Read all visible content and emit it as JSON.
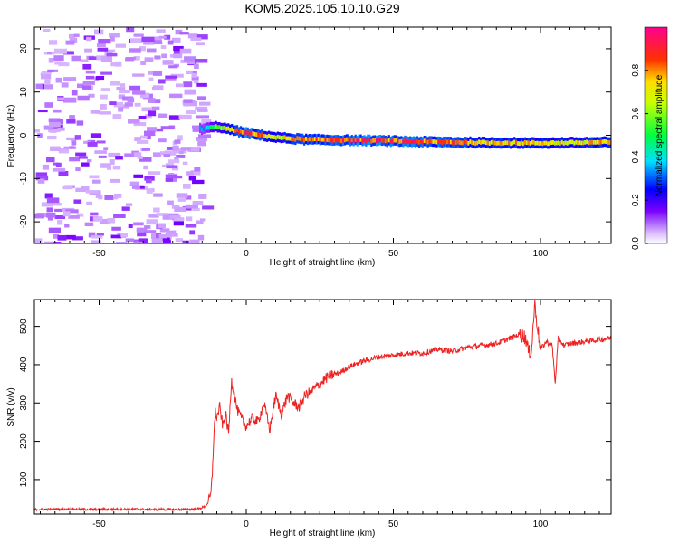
{
  "chart_data": [
    {
      "type": "heatmap",
      "title": "KOM5.2025.105.10.10.G29",
      "xlabel": "Height of straight line (km)",
      "ylabel": "Frequency (Hz)",
      "xlim": [
        -72,
        124
      ],
      "ylim": [
        -25,
        25
      ],
      "x_ticks": [
        -50,
        0,
        50,
        100
      ],
      "y_ticks": [
        -20,
        -10,
        0,
        10,
        20
      ],
      "colorbar": {
        "label": "Normalized spectral amplitude",
        "range": [
          0.0,
          1.0
        ],
        "ticks": [
          "0.0",
          "0.2",
          "0.4",
          "0.6",
          "0.8"
        ]
      },
      "ridge": {
        "description_points_x": [
          -15,
          -10,
          -5,
          0,
          10,
          20,
          40,
          60,
          80,
          100,
          124
        ],
        "frequency_hz": [
          1.5,
          2.0,
          1.2,
          0.5,
          -0.5,
          -1.0,
          -1.2,
          -1.5,
          -1.7,
          -1.8,
          -1.6
        ],
        "amplitude": [
          0.35,
          0.6,
          0.8,
          0.95,
          0.7,
          0.9,
          0.95,
          0.9,
          0.85,
          0.75,
          0.8
        ]
      }
    },
    {
      "type": "line",
      "title": "",
      "xlabel": "Height of straight line (km)",
      "ylabel": "SNR (v/v)",
      "xlim": [
        -72,
        124
      ],
      "ylim": [
        10,
        570
      ],
      "x_ticks": [
        -50,
        0,
        50,
        100
      ],
      "y_ticks": [
        100,
        200,
        300,
        400,
        500
      ],
      "grid": false,
      "series": [
        {
          "color": "#ee2222",
          "x": [
            -72,
            -60,
            -50,
            -40,
            -30,
            -20,
            -16,
            -14,
            -13,
            -12,
            -11.5,
            -11,
            -10.5,
            -10,
            -9,
            -8,
            -7,
            -6,
            -5,
            -3,
            -1,
            0,
            2,
            4,
            6,
            8,
            10,
            12,
            14,
            16,
            18,
            20,
            22,
            25,
            28,
            30,
            32,
            35,
            40,
            45,
            50,
            55,
            60,
            65,
            70,
            75,
            80,
            85,
            90,
            93,
            95,
            96,
            97,
            98,
            100,
            102,
            104,
            105,
            106,
            108,
            110,
            115,
            120,
            124
          ],
          "y": [
            22,
            23,
            22,
            23,
            22,
            22,
            24,
            30,
            40,
            60,
            120,
            220,
            275,
            260,
            290,
            240,
            270,
            220,
            360,
            280,
            250,
            240,
            260,
            250,
            300,
            230,
            320,
            270,
            320,
            300,
            290,
            320,
            330,
            350,
            370,
            375,
            380,
            395,
            410,
            420,
            425,
            430,
            430,
            440,
            435,
            445,
            450,
            455,
            470,
            480,
            470,
            430,
            440,
            560,
            440,
            460,
            450,
            350,
            470,
            450,
            455,
            460,
            465,
            470
          ]
        }
      ]
    }
  ]
}
